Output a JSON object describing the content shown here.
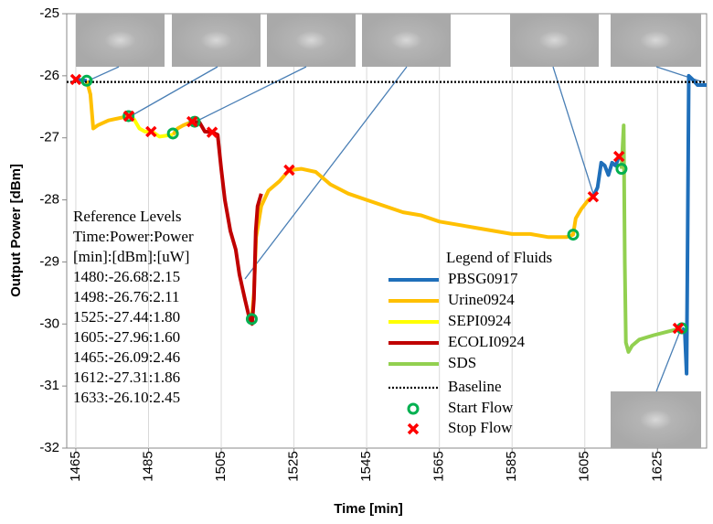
{
  "chart_data": {
    "type": "line",
    "x_label": "Time [min]",
    "y_label": "Output Power [dBm]",
    "xlim": [
      1462.5,
      1638.5
    ],
    "xticks": [
      1465,
      1485,
      1505,
      1525,
      1545,
      1565,
      1585,
      1605,
      1625
    ],
    "ylim": [
      -32,
      -25
    ],
    "yticks": [
      -32,
      -31,
      -30,
      -29,
      -28,
      -27,
      -26,
      -25
    ],
    "legend_title": "Legend of Fluids",
    "annotations": [
      "Reference Levels",
      "Time:Power:Power",
      "[min]:[dBm]:[uW]",
      "1480:-26.68:2.15",
      "1498:-26.76:2.11",
      "1525:-27.44:1.80",
      "1605:-27.96:1.60",
      "1465:-26.09:2.46",
      "1612:-27.31:1.86",
      "1633:-26.10:2.45"
    ],
    "series": [
      {
        "name": "PBSG0917",
        "style": "line",
        "color": "#1f6fba",
        "x": [
          1465,
          1468,
          null,
          1607.3,
          1608.5,
          1609.5,
          1610.5,
          1611.5,
          1612.5,
          1613.5,
          1614.4,
          null,
          1631.7,
          1632.5,
          1633,
          1633.3,
          1633.6,
          1634.5,
          1636,
          1638.5
        ],
        "values": [
          -26.06,
          -26.08,
          null,
          -27.95,
          -27.8,
          -27.4,
          -27.45,
          -27.6,
          -27.4,
          -27.45,
          -27.3,
          null,
          -30.07,
          -30.1,
          -30.8,
          -28.5,
          -26.0,
          -26.05,
          -26.15,
          -26.15
        ]
      },
      {
        "name": "Urine0924",
        "style": "line",
        "color": "#ffc000",
        "x": [
          1468,
          1469,
          1469.8,
          1471,
          1474,
          1479.5,
          null,
          1491.7,
          1493,
          1494.5,
          1497,
          null,
          1513.4,
          1514,
          1514.6,
          1516,
          1518,
          1521,
          1523.7,
          1527,
          1531,
          1535,
          1540,
          1545,
          1550,
          1555,
          1560,
          1565,
          1570,
          1575,
          1580,
          1585,
          1590,
          1595,
          1600,
          1601.8,
          1602.5,
          1604,
          1606,
          1607.3
        ],
        "values": [
          -26.08,
          -26.3,
          -26.85,
          -26.8,
          -26.72,
          -26.65,
          null,
          -26.95,
          -26.85,
          -26.8,
          -26.74,
          null,
          -29.92,
          -29.5,
          -28.6,
          -28.1,
          -27.85,
          -27.7,
          -27.52,
          -27.5,
          -27.55,
          -27.75,
          -27.9,
          -28.0,
          -28.1,
          -28.2,
          -28.25,
          -28.35,
          -28.4,
          -28.45,
          -28.5,
          -28.55,
          -28.55,
          -28.6,
          -28.6,
          -28.56,
          -28.3,
          -28.15,
          -28.0,
          -27.95
        ]
      },
      {
        "name": "SEPI0924",
        "style": "line",
        "color": "#ffff00",
        "x": [
          1479.5,
          1481,
          1482.5,
          1484,
          1486,
          1488,
          1491.7
        ],
        "values": [
          -26.65,
          -26.7,
          -26.85,
          -26.9,
          -26.9,
          -26.98,
          -26.95
        ]
      },
      {
        "name": "ECOLI0924",
        "style": "line",
        "color": "#c00000",
        "x": [
          1497.7,
          1499,
          1500.5,
          1502.5,
          1504,
          1505,
          1506,
          1507.5,
          1509,
          1510,
          1511.5,
          1512.5,
          1513.5,
          1514,
          1514.5,
          1515,
          1516
        ],
        "values": [
          -26.74,
          -26.75,
          -26.9,
          -26.91,
          -26.95,
          -27.5,
          -28.0,
          -28.5,
          -28.8,
          -29.2,
          -29.6,
          -29.85,
          -30.0,
          -29.6,
          -28.5,
          -28.1,
          -27.9
        ]
      },
      {
        "name": "SDS",
        "style": "line",
        "color": "#92d050",
        "x": [
          1615.1,
          1615.7,
          1616,
          1616.3,
          1617,
          1618,
          1620,
          1624,
          1628,
          1631.7
        ],
        "values": [
          -27.5,
          -26.8,
          -29.0,
          -30.3,
          -30.45,
          -30.35,
          -30.25,
          -30.18,
          -30.12,
          -30.07
        ]
      },
      {
        "name": "Baseline",
        "style": "dotted",
        "color": "#000000",
        "x": [
          1462.5,
          1638.5
        ],
        "values": [
          -26.1,
          -26.1
        ]
      },
      {
        "name": "Start Flow",
        "style": "circle",
        "color": "#00b050",
        "x": [
          1468,
          1479.5,
          1491.7,
          1497.7,
          1513.4,
          1601.8,
          1615.1,
          1631.7
        ],
        "values": [
          -26.08,
          -26.65,
          -26.93,
          -26.74,
          -29.92,
          -28.56,
          -27.5,
          -30.07
        ]
      },
      {
        "name": "Stop Flow",
        "style": "cross",
        "color": "#ff0000",
        "x": [
          1465,
          1479.6,
          1485.7,
          1497,
          1502.5,
          1523.7,
          1607.3,
          1614.4,
          1630.7
        ],
        "values": [
          -26.06,
          -26.65,
          -26.9,
          -26.74,
          -26.91,
          -27.52,
          -27.95,
          -27.3,
          -30.07
        ]
      }
    ]
  }
}
